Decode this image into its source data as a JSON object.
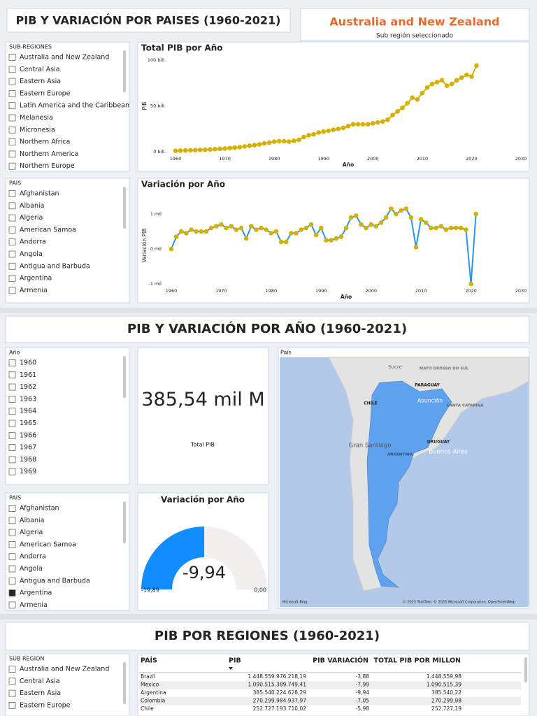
{
  "sections": [
    {
      "title": "PIB Y VARIACIÓN POR PAISES (1960-2021)"
    },
    {
      "title": "PIB Y VARIACIÓN POR AÑO (1960-2021)"
    },
    {
      "title": "PIB POR REGIONES (1960-2021)"
    }
  ],
  "card": {
    "value": "Australia and New Zealand",
    "label": "Sub región seleccionado"
  },
  "slicers": [
    {
      "header": "SUB-REGIONES",
      "items": [
        "Australia and New Zealand",
        "Central Asia",
        "Eastern Asia",
        "Eastern Europe",
        "Latin America and the Caribbean",
        "Melanesia",
        "Micronesia",
        "Northern Africa",
        "Northern America",
        "Northern Europe"
      ]
    },
    {
      "header": "PAÍS",
      "items": [
        "Afghanistan",
        "Albania",
        "Algeria",
        "American Samoa",
        "Andorra",
        "Angola",
        "Antigua and Barbuda",
        "Argentina",
        "Armenia"
      ]
    },
    {
      "header": "Año",
      "items": [
        "1960",
        "1961",
        "1962",
        "1963",
        "1964",
        "1965",
        "1966",
        "1967",
        "1968",
        "1969"
      ]
    },
    {
      "header": "PAIS",
      "items": [
        "Afghanistan",
        "Albania",
        "Algeria",
        "American Samoa",
        "Andorra",
        "Angola",
        "Antigua and Barbuda",
        "Argentina",
        "Armenia"
      ],
      "selected_index": 7
    },
    {
      "header": "SUB REGION",
      "items": [
        "Australia and New Zealand",
        "Central Asia",
        "Eastern Asia",
        "Eastern Europe"
      ]
    }
  ],
  "chart_data": [
    {
      "type": "line",
      "title": "Total PIB por Año",
      "x_label": "Año",
      "y_label": "PIB",
      "color": "#d4b000",
      "marker_color": "#d4b000",
      "x": [
        1960,
        1961,
        1962,
        1963,
        1964,
        1965,
        1966,
        1967,
        1968,
        1969,
        1970,
        1971,
        1972,
        1973,
        1974,
        1975,
        1976,
        1977,
        1978,
        1979,
        1980,
        1981,
        1982,
        1983,
        1984,
        1985,
        1986,
        1987,
        1988,
        1989,
        1990,
        1991,
        1992,
        1993,
        1994,
        1995,
        1996,
        1997,
        1998,
        1999,
        2000,
        2001,
        2002,
        2003,
        2004,
        2005,
        2006,
        2007,
        2008,
        2009,
        2010,
        2011,
        2012,
        2013,
        2014,
        2015,
        2016,
        2017,
        2018,
        2019,
        2020,
        2021
      ],
      "values": [
        1,
        1.2,
        1.4,
        1.6,
        1.8,
        2,
        2.2,
        2.5,
        2.8,
        3.1,
        3.5,
        4,
        4.5,
        5,
        5.8,
        6.5,
        7.2,
        8,
        9,
        10,
        11,
        11.5,
        11.5,
        11,
        12,
        13,
        16,
        18,
        19,
        21,
        22,
        23,
        24,
        25,
        26,
        28,
        30,
        30,
        30,
        30,
        31,
        32,
        33,
        35,
        40,
        44,
        48,
        53,
        59,
        57,
        64,
        70,
        74,
        76,
        78,
        72,
        74,
        78,
        81,
        84,
        82,
        94
      ],
      "xlim": [
        1960,
        2030
      ],
      "xticks": [
        1960,
        1970,
        1980,
        1990,
        2000,
        2010,
        2020,
        2030
      ],
      "ylim": [
        0,
        100
      ],
      "yticks": [
        {
          "value": 0,
          "label": "0 bill."
        },
        {
          "value": 50,
          "label": "50 bill."
        },
        {
          "value": 100,
          "label": "100 bill."
        }
      ]
    },
    {
      "type": "line",
      "title": "Variación por Año",
      "x_label": "Año",
      "y_label": "Variación PIB",
      "color": "#2b95e6",
      "marker_color": "#d4b000",
      "x": [
        1960,
        1961,
        1962,
        1963,
        1964,
        1965,
        1966,
        1967,
        1968,
        1969,
        1970,
        1971,
        1972,
        1973,
        1974,
        1975,
        1976,
        1977,
        1978,
        1979,
        1980,
        1981,
        1982,
        1983,
        1984,
        1985,
        1986,
        1987,
        1988,
        1989,
        1990,
        1991,
        1992,
        1993,
        1994,
        1995,
        1996,
        1997,
        1998,
        1999,
        2000,
        2001,
        2002,
        2003,
        2004,
        2005,
        2006,
        2007,
        2008,
        2009,
        2010,
        2011,
        2012,
        2013,
        2014,
        2015,
        2016,
        2017,
        2018,
        2019,
        2020,
        2021
      ],
      "values": [
        0,
        0.35,
        0.5,
        0.45,
        0.55,
        0.5,
        0.5,
        0.5,
        0.6,
        0.65,
        0.7,
        0.6,
        0.65,
        0.55,
        0.6,
        0.3,
        0.65,
        0.55,
        0.6,
        0.55,
        0.45,
        0.5,
        0.2,
        0.2,
        0.45,
        0.45,
        0.55,
        0.6,
        0.7,
        0.4,
        0.6,
        0.25,
        0.25,
        0.3,
        0.35,
        0.6,
        0.9,
        0.95,
        0.7,
        0.6,
        0.7,
        0.65,
        0.75,
        0.9,
        1.15,
        1.0,
        1.1,
        1.15,
        0.9,
        0.05,
        0.85,
        0.75,
        0.6,
        0.6,
        0.65,
        0.55,
        0.6,
        0.6,
        0.6,
        0.55,
        -1.0,
        1.0
      ],
      "xlim": [
        1960,
        2030
      ],
      "xticks": [
        1960,
        1970,
        1980,
        1990,
        2000,
        2010,
        2020,
        2030
      ],
      "ylim": [
        -1,
        1.2
      ],
      "yticks": [
        {
          "value": -1,
          "label": "-1 mil"
        },
        {
          "value": 0,
          "label": "0 mil"
        },
        {
          "value": 1,
          "label": "1 mil"
        }
      ]
    }
  ],
  "kpi": {
    "value": "385,54 mil M",
    "label": "Total PIB"
  },
  "gauge": {
    "title": "Variación por Año",
    "value": -9.94,
    "value_label": "-9,94",
    "min": -19.89,
    "min_label": "-19,89",
    "max": 0,
    "max_label": "0,00",
    "color": "#118dff"
  },
  "map": {
    "title": "País",
    "labels": [
      "Sucre",
      "MATO GROSSO DO SUL",
      "PARAGUAY",
      "CHILE",
      "Asunción",
      "SANTA CATARINA",
      "URUGUAY",
      "Gran Santiago",
      "ARGENTINA",
      "Buenos Aires"
    ],
    "attribution": "© 2023 TomTom, © 2023 Microsoft Corporation, OpenStreetMap",
    "logo": "Microsoft Bing"
  },
  "table": {
    "columns": [
      "PAÍS",
      "PIB",
      "PIB VARIACIÓN",
      "TOTAL PIB POR MILLON"
    ],
    "rows": [
      [
        "Brazil",
        "1.448.559.976.218,19",
        "-3,88",
        "1.448.559,98"
      ],
      [
        "Mexico",
        "1.090.515.389.749,41",
        "-7,99",
        "1.090.515,39"
      ],
      [
        "Argentina",
        "385.540.224.628,29",
        "-9,94",
        "385.540,22"
      ],
      [
        "Colombia",
        "270.299.984.937,97",
        "-7,05",
        "270.299,98"
      ],
      [
        "Chile",
        "252.727.193.710,02",
        "-5,98",
        "252.727,19"
      ]
    ]
  }
}
